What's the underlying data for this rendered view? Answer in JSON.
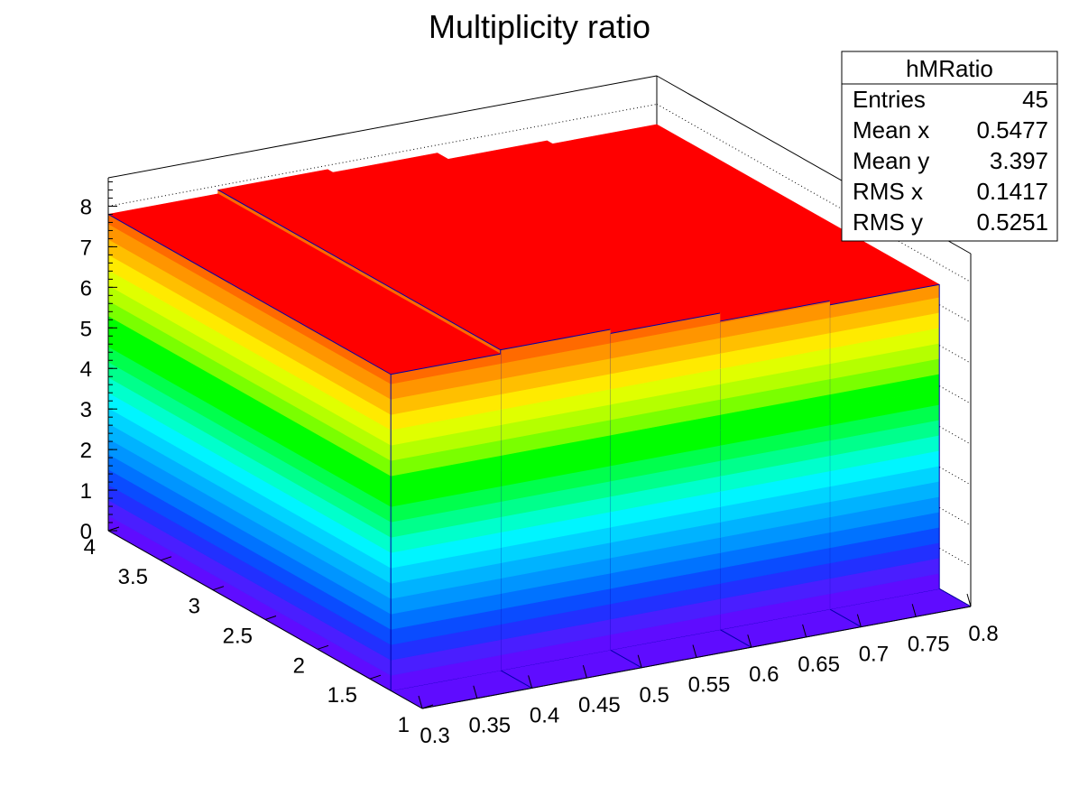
{
  "chart_data": {
    "type": "lego",
    "histogram_name": "hMRatio",
    "title": "Multiplicity ratio",
    "xlabel": "",
    "ylabel": "",
    "zlabel": "",
    "xlim": [
      0.3,
      0.8
    ],
    "ylim": [
      1,
      4
    ],
    "zlim": [
      0,
      8.7
    ],
    "x_ticks": [
      "0.3",
      "0.35",
      "0.4",
      "0.45",
      "0.5",
      "0.55",
      "0.6",
      "0.65",
      "0.7",
      "0.75",
      "0.8"
    ],
    "y_ticks": [
      "1",
      "1.5",
      "2",
      "2.5",
      "3",
      "3.5",
      "4"
    ],
    "z_ticks": [
      "0",
      "1",
      "2",
      "3",
      "4",
      "5",
      "6",
      "7",
      "8"
    ],
    "x_bin_edges": [
      0.3,
      0.4,
      0.5,
      0.6,
      0.7,
      0.8
    ],
    "y_bin_edges": [
      1.0,
      1.3,
      4.0
    ],
    "bins": [
      {
        "x": [
          0.3,
          0.4
        ],
        "y": [
          1.3,
          4.0
        ],
        "z": 7.8
      },
      {
        "x": [
          0.4,
          0.5
        ],
        "y": [
          1.3,
          4.0
        ],
        "z": 7.9
      },
      {
        "x": [
          0.5,
          0.6
        ],
        "y": [
          1.3,
          4.0
        ],
        "z": 7.8
      },
      {
        "x": [
          0.6,
          0.7
        ],
        "y": [
          1.3,
          4.0
        ],
        "z": 7.6
      },
      {
        "x": [
          0.7,
          0.8
        ],
        "y": [
          1.3,
          4.0
        ],
        "z": 7.5
      }
    ],
    "palette": [
      "#5f0cff",
      "#4a1eff",
      "#2230ff",
      "#0a4cff",
      "#0073ff",
      "#0095ff",
      "#00b3ff",
      "#00d4ff",
      "#00f5ff",
      "#00ffcc",
      "#00ff8c",
      "#00ff4d",
      "#00ff00",
      "#33ff00",
      "#7aff00",
      "#b5ff00",
      "#e0ff00",
      "#ffea00",
      "#ffbf00",
      "#ff9500",
      "#ff6a00",
      "#ff3d00",
      "#ff0000"
    ],
    "grid": true,
    "legend": "top-right"
  },
  "stats_box": {
    "title": "hMRatio",
    "rows": [
      {
        "label": "Entries",
        "value": "45"
      },
      {
        "label": "Mean x",
        "value": "0.5477"
      },
      {
        "label": "Mean y",
        "value": "3.397"
      },
      {
        "label": "RMS x",
        "value": "0.1417"
      },
      {
        "label": "RMS y",
        "value": "0.5251"
      }
    ]
  }
}
